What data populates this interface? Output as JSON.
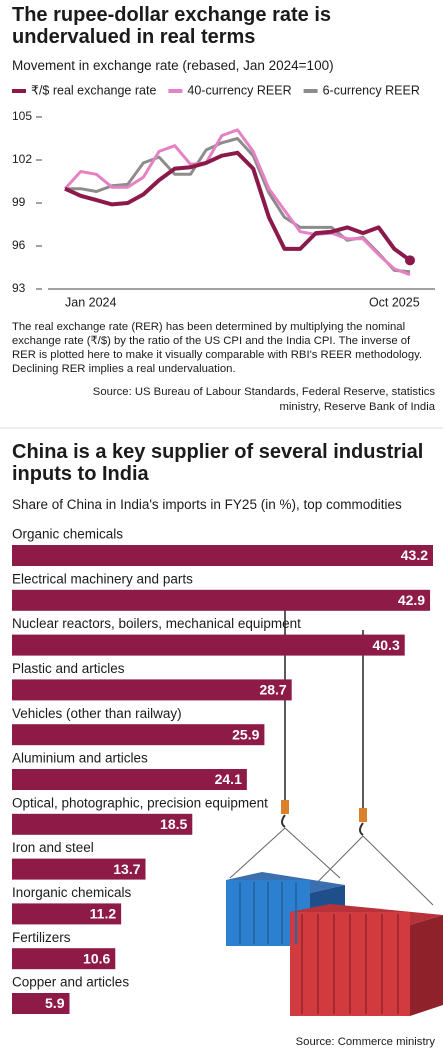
{
  "chart_data": [
    {
      "type": "line",
      "title": "The rupee-dollar exchange rate is undervalued in real terms",
      "subtitle": "Movement in exchange rate (rebased, Jan 2024=100)",
      "categories": [
        "Jan 2024",
        null,
        null,
        null,
        null,
        null,
        null,
        null,
        null,
        null,
        null,
        null,
        null,
        null,
        null,
        null,
        null,
        null,
        null,
        null,
        null,
        "Oct 2025",
        null
      ],
      "series": [
        {
          "name": "₹/$ real exchange rate",
          "color": "#8b1a4a",
          "marker_last": true,
          "values": [
            100,
            99.5,
            99.2,
            98.9,
            99.0,
            99.6,
            100.6,
            101.4,
            101.5,
            101.8,
            102.3,
            102.5,
            101.4,
            98.0,
            95.8,
            95.8,
            96.9,
            97.0,
            97.3,
            96.9,
            97.3,
            95.8,
            95.0
          ]
        },
        {
          "name": "40-currency REER",
          "color": "#e581c4",
          "values": [
            100,
            101.2,
            101.0,
            100.1,
            100.1,
            100.8,
            102.6,
            103.0,
            101.7,
            101.8,
            103.7,
            104.1,
            102.6,
            100.0,
            98.5,
            97.0,
            96.8,
            96.9,
            96.5,
            96.5,
            95.4,
            94.4,
            94.0
          ]
        },
        {
          "name": "6-currency REER",
          "color": "#8c8c8c",
          "values": [
            100,
            100,
            99.8,
            100.2,
            100.3,
            101.8,
            102.2,
            101.0,
            101.0,
            102.7,
            103.2,
            103.5,
            102.3,
            99.7,
            98.0,
            97.3,
            97.3,
            97.3,
            96.4,
            96.6,
            95.5,
            94.3,
            94.2
          ]
        }
      ],
      "ylim": [
        93,
        105
      ],
      "yticks": [
        93,
        96,
        99,
        102,
        105
      ],
      "note": "The real exchange rate (RER) has been determined by multiplying the nominal exchange rate (₹/$) by the ratio of the US CPI and the India CPI. The inverse of RER is plotted here to make it visually comparable with RBI's REER methodology. Declining RER implies a real undervaluation.",
      "source": "Source: US Bureau of Labour Standards, Federal Reserve, statistics ministry, Reserve Bank of India"
    },
    {
      "type": "bar",
      "title": "China is a key supplier of several industrial inputs to India",
      "subtitle": "Share of China in India's imports in FY25 (in %), top commodities",
      "categories": [
        "Organic chemicals",
        "Electrical machinery and parts",
        "Nuclear reactors, boilers, mechanical equipment",
        "Plastic and articles",
        "Vehicles (other than railway)",
        "Aluminium and articles",
        "Optical, photographic, precision equipment",
        "Iron and steel",
        "Inorganic chemicals",
        "Fertilizers",
        "Copper and articles"
      ],
      "values": [
        43.2,
        42.9,
        40.3,
        28.7,
        25.9,
        24.1,
        18.5,
        13.7,
        11.2,
        10.6,
        5.9
      ],
      "color": "#8e1a47",
      "source": "Source: Commerce ministry"
    }
  ]
}
